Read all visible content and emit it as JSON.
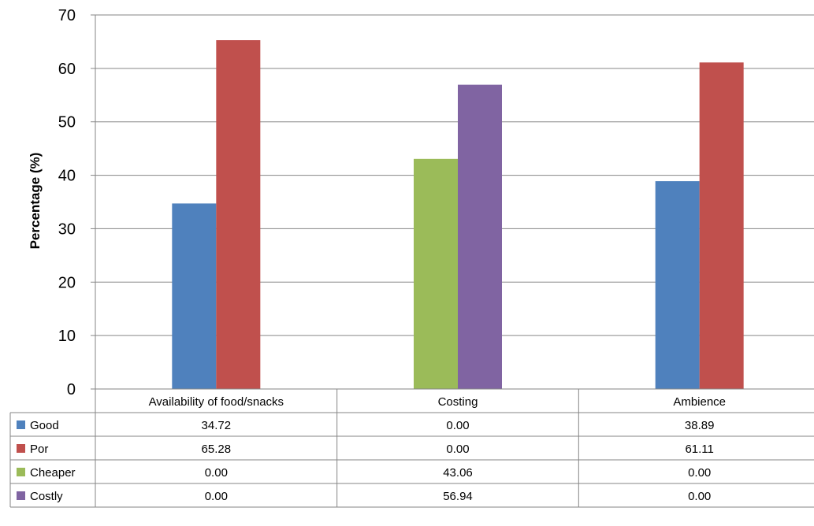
{
  "chart_data": {
    "type": "bar",
    "ylabel": "Percentage (%)",
    "ylim": [
      0,
      70
    ],
    "yticks": [
      0,
      10,
      20,
      30,
      40,
      50,
      60,
      70
    ],
    "grid": true,
    "categories": [
      "Availability of food/snacks",
      "Costing",
      "Ambience"
    ],
    "series": [
      {
        "name": "Good",
        "color": "#4F81BD",
        "values": [
          34.72,
          0.0,
          38.89
        ],
        "labels": [
          "34.72",
          "0.00",
          "38.89"
        ]
      },
      {
        "name": "Por",
        "color": "#C0504D",
        "values": [
          65.28,
          0.0,
          61.11
        ],
        "labels": [
          "65.28",
          "0.00",
          "61.11"
        ]
      },
      {
        "name": "Cheaper",
        "color": "#9BBB59",
        "values": [
          0.0,
          43.06,
          0.0
        ],
        "labels": [
          "0.00",
          "43.06",
          "0.00"
        ]
      },
      {
        "name": "Costly",
        "color": "#8064A2",
        "values": [
          0.0,
          56.94,
          0.0
        ],
        "labels": [
          "0.00",
          "56.94",
          "0.00"
        ]
      }
    ],
    "legend": "data-table"
  }
}
